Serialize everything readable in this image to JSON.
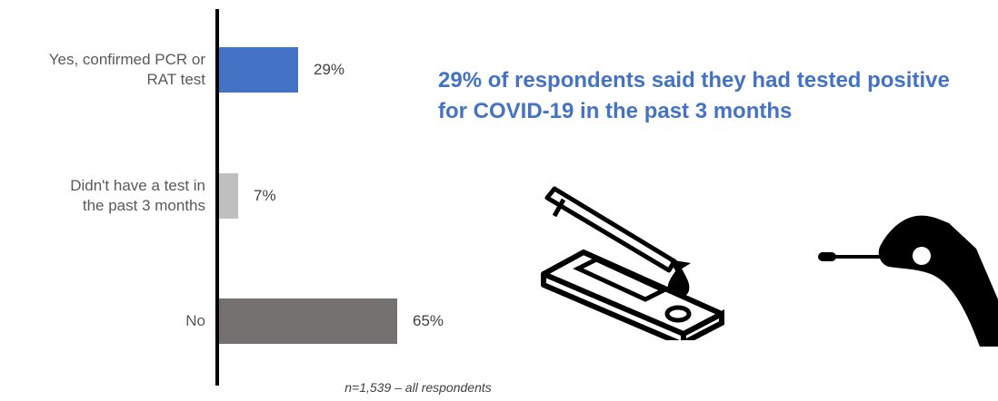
{
  "chart_data": {
    "type": "bar",
    "orientation": "horizontal",
    "categories": [
      "Yes, confirmed PCR or RAT test",
      "Didn't have a test in the past 3 months",
      "No"
    ],
    "category_lines": [
      [
        "Yes, confirmed PCR or",
        "RAT test"
      ],
      [
        "Didn't have a test in",
        "the past 3 months"
      ],
      [
        "No"
      ]
    ],
    "values": [
      29,
      7,
      65
    ],
    "value_labels": [
      "29%",
      "7%",
      "65%"
    ],
    "bar_colors": [
      "#4472c4",
      "#bfbfbf",
      "#767171"
    ],
    "xlim": [
      0,
      100
    ],
    "grid": false,
    "legend": "none"
  },
  "headline": {
    "text": "29% of respondents said they had tested positive for COVID-19 in the past 3 months",
    "color": "#4472c4"
  },
  "footnote": "n=1,539 – all respondents",
  "illustrations": [
    "rapid-antigen-test-kit-icon",
    "dropper-icon",
    "hand-holding-swab-icon"
  ]
}
